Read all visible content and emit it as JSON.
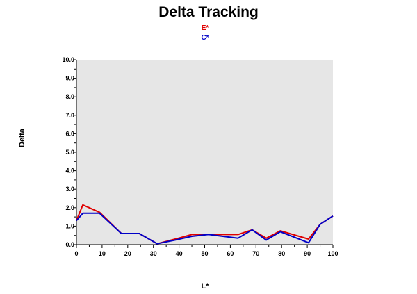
{
  "chart_data": {
    "type": "line",
    "title": "Delta Tracking",
    "xlabel": "L*",
    "ylabel": "Delta",
    "xlim": [
      0,
      100
    ],
    "ylim": [
      0,
      10
    ],
    "x_ticks": [
      "0",
      "10",
      "20",
      "30",
      "40",
      "50",
      "60",
      "70",
      "80",
      "90",
      "100"
    ],
    "y_ticks": [
      "0.0",
      "1.0",
      "2.0",
      "3.0",
      "4.0",
      "5.0",
      "6.0",
      "7.0",
      "8.0",
      "9.0",
      "10.0"
    ],
    "plot_background": "#e6e6e6",
    "grid": false,
    "legend_position": "top-center",
    "series": [
      {
        "name": "E*",
        "color": "#e00000",
        "points": [
          [
            0,
            1.3
          ],
          [
            2.5,
            2.15
          ],
          [
            9,
            1.75
          ],
          [
            17.5,
            0.6
          ],
          [
            24.5,
            0.6
          ],
          [
            31.5,
            0.05
          ],
          [
            38.5,
            0.3
          ],
          [
            45,
            0.55
          ],
          [
            51.5,
            0.55
          ],
          [
            63,
            0.55
          ],
          [
            68.5,
            0.8
          ],
          [
            74,
            0.35
          ],
          [
            79.5,
            0.75
          ],
          [
            90.5,
            0.3
          ],
          [
            95,
            1.1
          ],
          [
            100,
            1.55
          ]
        ]
      },
      {
        "name": "C*",
        "color": "#0000c8",
        "points": [
          [
            0,
            1.3
          ],
          [
            2.5,
            1.7
          ],
          [
            9,
            1.7
          ],
          [
            17.5,
            0.6
          ],
          [
            24.5,
            0.6
          ],
          [
            31.5,
            0.05
          ],
          [
            38.5,
            0.25
          ],
          [
            45,
            0.45
          ],
          [
            51.5,
            0.55
          ],
          [
            63,
            0.35
          ],
          [
            68.5,
            0.8
          ],
          [
            74,
            0.25
          ],
          [
            79.5,
            0.7
          ],
          [
            90.5,
            0.1
          ],
          [
            95,
            1.1
          ],
          [
            100,
            1.55
          ]
        ]
      }
    ]
  }
}
